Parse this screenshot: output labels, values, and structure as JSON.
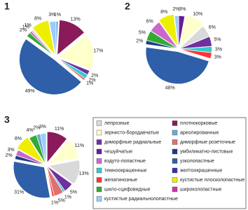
{
  "chart_data": [
    {
      "type": "pie",
      "title": "1",
      "values": [
        1,
        13,
        17,
        2,
        2,
        1,
        49,
        2,
        1,
        1,
        8,
        3
      ],
      "value_labels": [
        "1%",
        "13%",
        "17%",
        "2%",
        "2%",
        "1%",
        "49%",
        "2%",
        "1%",
        "1%",
        "8%",
        "3%"
      ],
      "colors": [
        "#6fa8dc",
        "#8b1a5a",
        "#ffffcc",
        "#7030a0",
        "#33cccc",
        "#e07070",
        "#2e5fa8",
        "#33aa33",
        "#cc66cc",
        "#d9d9d9",
        "#eeee00",
        "#99ccff"
      ]
    },
    {
      "type": "pie",
      "title": "2",
      "values": [
        3,
        10,
        6,
        5,
        3,
        3,
        48,
        2,
        5,
        6,
        8,
        2
      ],
      "value_labels": [
        "3%",
        "10%",
        "6%",
        "5%",
        "3%",
        "3%",
        "48%",
        "2%",
        "5%",
        "6%",
        "8%",
        "2%"
      ],
      "colors": [
        "#6a1b9a",
        "#ffffcc",
        "#d9d9d9",
        "#7030a0",
        "#33cccc",
        "#ff3333",
        "#2e5fa8",
        "#1f3c88",
        "#33aa33",
        "#cc66cc",
        "#eeee00",
        "#99ccff"
      ]
    },
    {
      "type": "pie",
      "title": "3",
      "values": [
        11,
        11,
        13,
        5,
        1,
        5,
        1,
        31,
        2,
        3,
        8,
        4,
        2,
        3
      ],
      "value_labels": [
        "11%",
        "11%",
        "13%",
        "5%",
        "1%",
        "5%",
        "1%",
        "31%",
        "2%",
        "3%",
        "8%",
        "4%",
        "2%",
        "3%"
      ],
      "colors": [
        "#8b1a5a",
        "#ffffcc",
        "#d9d9d9",
        "#7030a0",
        "#33cccc",
        "#e07070",
        "#ff3333",
        "#2e5fa8",
        "#1f3c88",
        "#cc66cc",
        "#eeee00",
        "#33aa33",
        "#6fa8dc",
        "#99ccff"
      ]
    }
  ],
  "legend": [
    {
      "name": "лепрозные",
      "color": "#d9d9d9"
    },
    {
      "name": "плотнокорковые",
      "color": "#8b1a5a"
    },
    {
      "name": "зернисто-бородавчатые",
      "color": "#ffffcc"
    },
    {
      "name": "ареолированные",
      "color": "#6fa8dc"
    },
    {
      "name": "диморфные радиальные",
      "color": "#7030a0"
    },
    {
      "name": "диморфные розеточные",
      "color": "#e07070"
    },
    {
      "name": "чешуйчатые",
      "color": "#6a1b9a"
    },
    {
      "name": "умбиликатно-листовые",
      "color": "#1f3c88"
    },
    {
      "name": "вздуто-лопастные",
      "color": "#cc66cc"
    },
    {
      "name": "узколопастные",
      "color": "#2e5fa8"
    },
    {
      "name": "темноокрашенные",
      "color": "#33cccc"
    },
    {
      "name": "желтоокрашенные",
      "color": "#3333aa"
    },
    {
      "name": "желатинозные",
      "color": "#ff3333"
    },
    {
      "name": "кустистые плосколопастные",
      "color": "#eeee00"
    },
    {
      "name": "шило-сцифовидные",
      "color": "#33aa33"
    },
    {
      "name": "широколопастные",
      "color": "#cc33aa"
    },
    {
      "name": "кустистые радиальнолопастные",
      "color": "#99ccff"
    }
  ]
}
